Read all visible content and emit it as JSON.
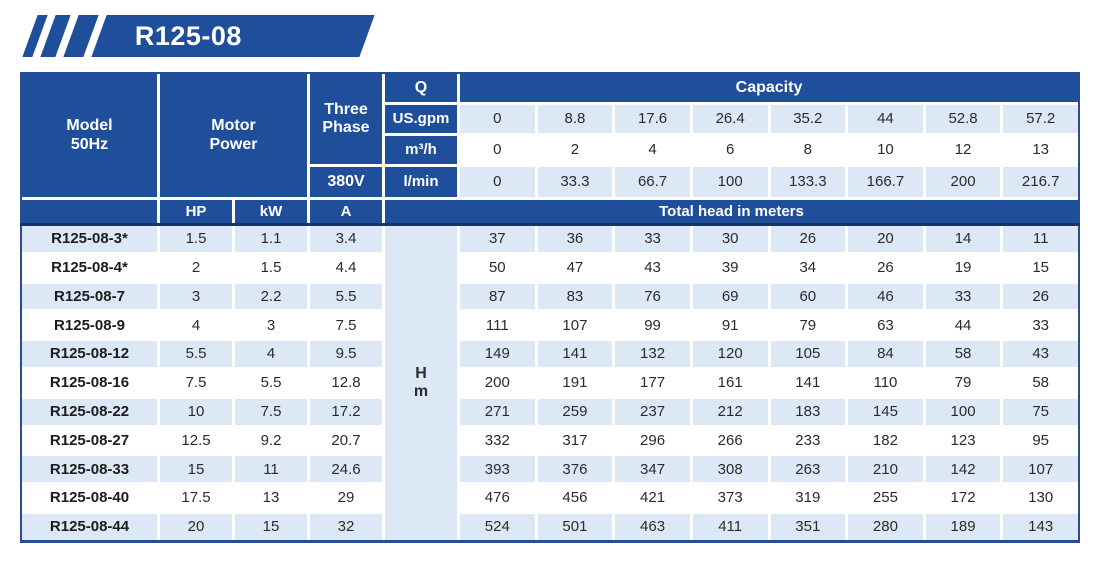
{
  "badge": {
    "title": "R125-08"
  },
  "header": {
    "model_label": "Model",
    "freq_label": "50Hz",
    "motor_power": [
      "Motor",
      "Power"
    ],
    "three_phase": [
      "Three",
      "Phase"
    ],
    "voltage": "380V",
    "q_label": "Q",
    "capacity_label": "Capacity",
    "hp_label": "HP",
    "kw_label": "kW",
    "amp_label": "A",
    "total_head_label": "Total head in meters",
    "head_unit": [
      "H",
      "m"
    ]
  },
  "capacity": [
    {
      "unit": "US.gpm",
      "values": [
        "0",
        "8.8",
        "17.6",
        "26.4",
        "35.2",
        "44",
        "52.8",
        "57.2"
      ]
    },
    {
      "unit": "m³/h",
      "values": [
        "0",
        "2",
        "4",
        "6",
        "8",
        "10",
        "12",
        "13"
      ]
    },
    {
      "unit": "l/min",
      "values": [
        "0",
        "33.3",
        "66.7",
        "100",
        "133.3",
        "166.7",
        "200",
        "216.7"
      ]
    }
  ],
  "rows": [
    {
      "model": "R125-08-3*",
      "hp": "1.5",
      "kw": "1.1",
      "a": "3.4",
      "head": [
        "37",
        "36",
        "33",
        "30",
        "26",
        "20",
        "14",
        "11"
      ]
    },
    {
      "model": "R125-08-4*",
      "hp": "2",
      "kw": "1.5",
      "a": "4.4",
      "head": [
        "50",
        "47",
        "43",
        "39",
        "34",
        "26",
        "19",
        "15"
      ]
    },
    {
      "model": "R125-08-7",
      "hp": "3",
      "kw": "2.2",
      "a": "5.5",
      "head": [
        "87",
        "83",
        "76",
        "69",
        "60",
        "46",
        "33",
        "26"
      ]
    },
    {
      "model": "R125-08-9",
      "hp": "4",
      "kw": "3",
      "a": "7.5",
      "head": [
        "111",
        "107",
        "99",
        "91",
        "79",
        "63",
        "44",
        "33"
      ]
    },
    {
      "model": "R125-08-12",
      "hp": "5.5",
      "kw": "4",
      "a": "9.5",
      "head": [
        "149",
        "141",
        "132",
        "120",
        "105",
        "84",
        "58",
        "43"
      ]
    },
    {
      "model": "R125-08-16",
      "hp": "7.5",
      "kw": "5.5",
      "a": "12.8",
      "head": [
        "200",
        "191",
        "177",
        "161",
        "141",
        "110",
        "79",
        "58"
      ]
    },
    {
      "model": "R125-08-22",
      "hp": "10",
      "kw": "7.5",
      "a": "17.2",
      "head": [
        "271",
        "259",
        "237",
        "212",
        "183",
        "145",
        "100",
        "75"
      ]
    },
    {
      "model": "R125-08-27",
      "hp": "12.5",
      "kw": "9.2",
      "a": "20.7",
      "head": [
        "332",
        "317",
        "296",
        "266",
        "233",
        "182",
        "123",
        "95"
      ]
    },
    {
      "model": "R125-08-33",
      "hp": "15",
      "kw": "11",
      "a": "24.6",
      "head": [
        "393",
        "376",
        "347",
        "308",
        "263",
        "210",
        "142",
        "107"
      ]
    },
    {
      "model": "R125-08-40",
      "hp": "17.5",
      "kw": "13",
      "a": "29",
      "head": [
        "476",
        "456",
        "421",
        "373",
        "319",
        "255",
        "172",
        "130"
      ]
    },
    {
      "model": "R125-08-44",
      "hp": "20",
      "kw": "15",
      "a": "32",
      "head": [
        "524",
        "501",
        "463",
        "411",
        "351",
        "280",
        "189",
        "143"
      ]
    }
  ],
  "colors": {
    "primary_blue": "#1f4e9b",
    "dark_navy": "#16346b",
    "stripe_light_blue": "#dce8f6",
    "text_dark": "#2b2b2b"
  }
}
